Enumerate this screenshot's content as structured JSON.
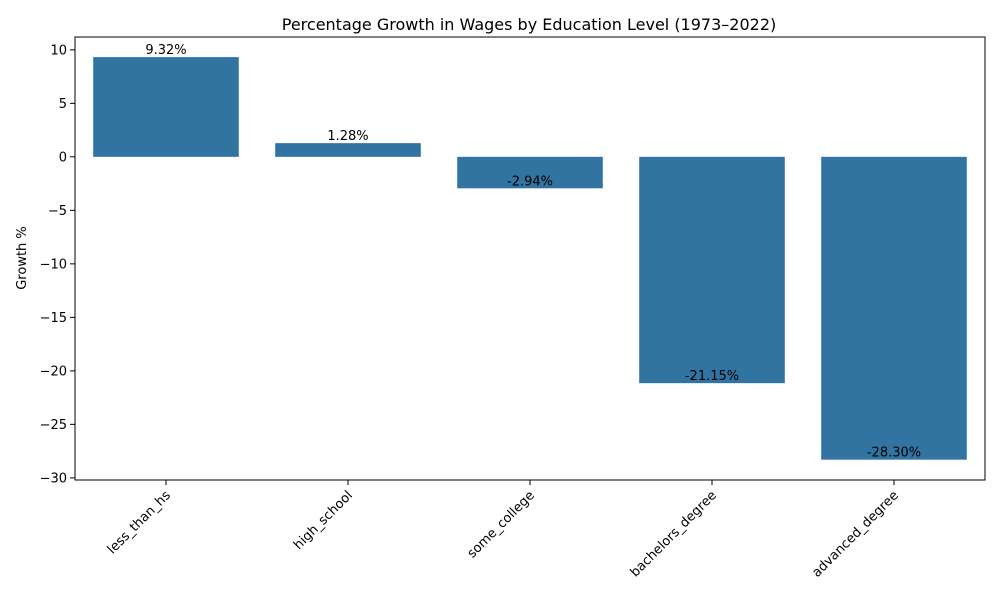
{
  "chart_data": {
    "type": "bar",
    "title": "Percentage Growth in Wages by Education Level (1973–2022)",
    "xlabel": "",
    "ylabel": "Growth %",
    "categories": [
      "less_than_hs",
      "high_school",
      "some_college",
      "bachelors_degree",
      "advanced_degree"
    ],
    "values": [
      9.32,
      1.28,
      -2.94,
      -21.15,
      -28.3
    ],
    "data_labels": [
      "9.32%",
      "1.28%",
      "-2.94%",
      "-21.15%",
      "-28.30%"
    ],
    "ylim": [
      -30.2,
      11.2
    ],
    "yticks": [
      10,
      5,
      0,
      -5,
      -10,
      -15,
      -20,
      -25,
      -30
    ],
    "ytick_labels": [
      "10",
      "5",
      "0",
      "−5",
      "−10",
      "−15",
      "−20",
      "−25",
      "−30"
    ],
    "grid": false,
    "bar_color": "#3274a1"
  }
}
